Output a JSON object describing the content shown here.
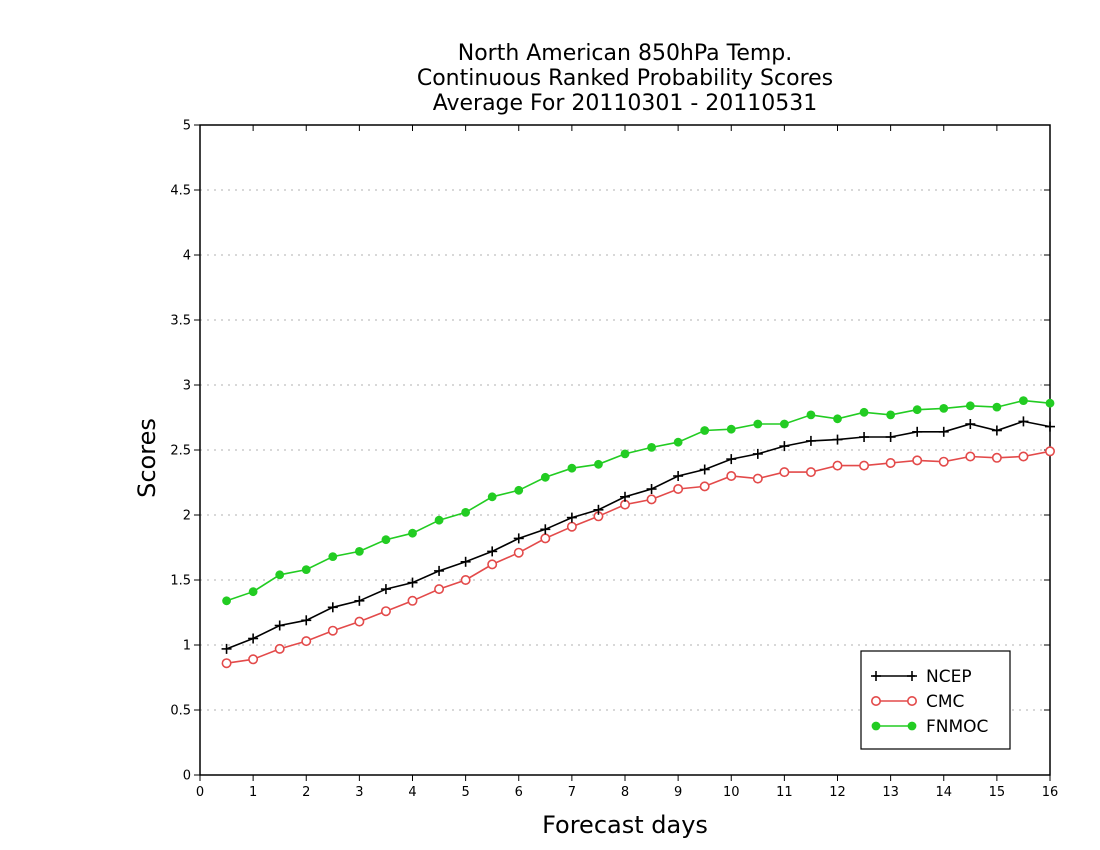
{
  "chart_data": {
    "type": "line",
    "title": [
      "North American 850hPa Temp.",
      "Continuous Ranked Probability Scores",
      "Average For 20110301 - 20110531"
    ],
    "xlabel": "Forecast days",
    "ylabel": "Scores",
    "xlim": [
      0,
      16
    ],
    "ylim": [
      0,
      5
    ],
    "x_ticks": [
      "0",
      "1",
      "2",
      "3",
      "4",
      "5",
      "6",
      "7",
      "8",
      "9",
      "10",
      "11",
      "12",
      "13",
      "14",
      "15",
      "16"
    ],
    "y_ticks": [
      "0",
      "0.5",
      "1",
      "1.5",
      "2",
      "2.5",
      "3",
      "3.5",
      "4",
      "4.5",
      "5"
    ],
    "grid": true,
    "legend_position": "bottom-right",
    "x": [
      0.5,
      1,
      1.5,
      2,
      2.5,
      3,
      3.5,
      4,
      4.5,
      5,
      5.5,
      6,
      6.5,
      7,
      7.5,
      8,
      8.5,
      9,
      9.5,
      10,
      10.5,
      11,
      11.5,
      12,
      12.5,
      13,
      13.5,
      14,
      14.5,
      15,
      15.5,
      16
    ],
    "series": [
      {
        "name": "NCEP",
        "color": "#000000",
        "marker": "plus",
        "values": [
          0.97,
          1.05,
          1.15,
          1.19,
          1.29,
          1.34,
          1.43,
          1.48,
          1.57,
          1.64,
          1.72,
          1.82,
          1.89,
          1.98,
          2.04,
          2.14,
          2.2,
          2.3,
          2.35,
          2.43,
          2.47,
          2.53,
          2.57,
          2.58,
          2.6,
          2.6,
          2.64,
          2.64,
          2.7,
          2.65,
          2.72,
          2.68
        ]
      },
      {
        "name": "CMC",
        "color": "#e34a4a",
        "marker": "open-circle",
        "values": [
          0.86,
          0.89,
          0.97,
          1.03,
          1.11,
          1.18,
          1.26,
          1.34,
          1.43,
          1.5,
          1.62,
          1.71,
          1.82,
          1.91,
          1.99,
          2.08,
          2.12,
          2.2,
          2.22,
          2.3,
          2.28,
          2.33,
          2.33,
          2.38,
          2.38,
          2.4,
          2.42,
          2.41,
          2.45,
          2.44,
          2.45,
          2.49
        ]
      },
      {
        "name": "FNMOC",
        "color": "#22cc22",
        "marker": "filled-circle",
        "values": [
          1.34,
          1.41,
          1.54,
          1.58,
          1.68,
          1.72,
          1.81,
          1.86,
          1.96,
          2.02,
          2.14,
          2.19,
          2.29,
          2.36,
          2.39,
          2.47,
          2.52,
          2.56,
          2.65,
          2.66,
          2.7,
          2.7,
          2.77,
          2.74,
          2.79,
          2.77,
          2.81,
          2.82,
          2.84,
          2.83,
          2.88,
          2.86
        ]
      }
    ]
  }
}
